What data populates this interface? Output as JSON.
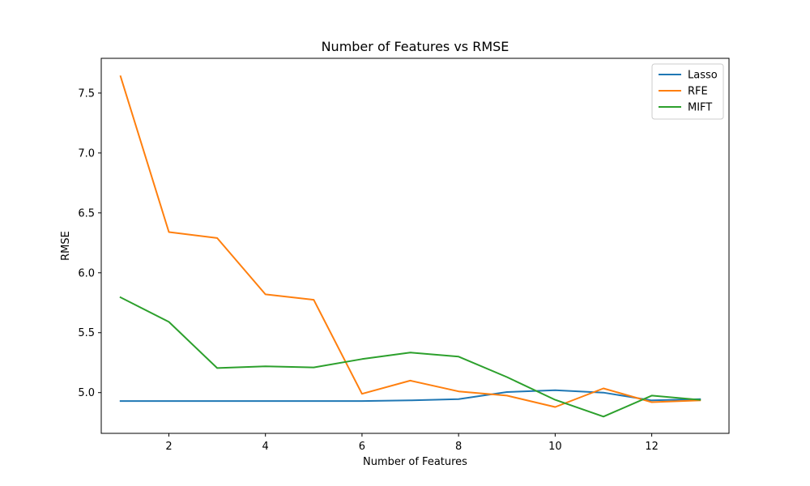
{
  "chart_data": {
    "type": "line",
    "title": "Number of Features vs RMSE",
    "xlabel": "Number of Features",
    "ylabel": "RMSE",
    "x": [
      1,
      2,
      3,
      4,
      5,
      6,
      7,
      8,
      9,
      10,
      11,
      12,
      13
    ],
    "xlim": [
      0.6,
      13.6
    ],
    "ylim": [
      4.66,
      7.79
    ],
    "xticks": [
      2,
      4,
      6,
      8,
      10,
      12
    ],
    "yticks": [
      5.0,
      5.5,
      6.0,
      6.5,
      7.0,
      7.5
    ],
    "ytick_labels": [
      "5.0",
      "5.5",
      "6.0",
      "6.5",
      "7.0",
      "7.5"
    ],
    "grid": false,
    "legend": "top-right",
    "series": [
      {
        "name": "Lasso",
        "color": "#1f77b4",
        "values": [
          4.93,
          4.93,
          4.93,
          4.93,
          4.93,
          4.93,
          4.935,
          4.945,
          5.005,
          5.02,
          5.0,
          4.935,
          4.945
        ]
      },
      {
        "name": "RFE",
        "color": "#ff7f0e",
        "values": [
          7.64,
          6.34,
          6.29,
          5.82,
          5.775,
          4.99,
          5.1,
          5.01,
          4.975,
          4.88,
          5.035,
          4.92,
          4.935
        ]
      },
      {
        "name": "MIFT",
        "color": "#2ca02c",
        "values": [
          5.795,
          5.59,
          5.205,
          5.22,
          5.21,
          5.28,
          5.335,
          5.3,
          5.13,
          4.94,
          4.8,
          4.975,
          4.94
        ]
      }
    ]
  }
}
